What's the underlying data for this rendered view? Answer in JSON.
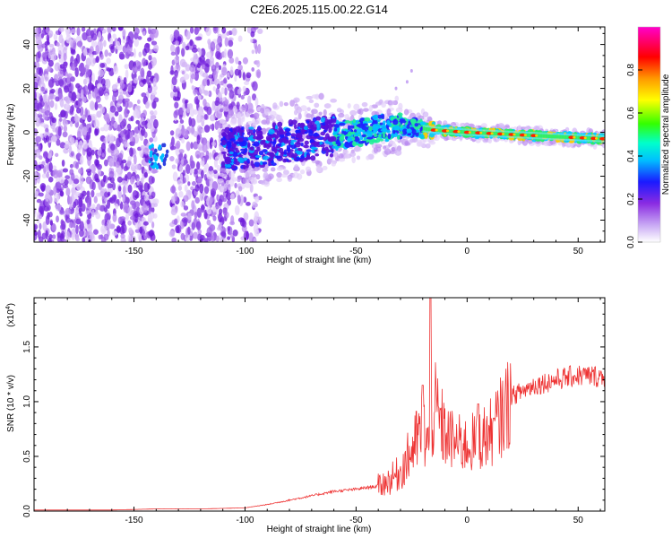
{
  "title": "C2E6.2025.115.00.22.G14",
  "chart_data": [
    {
      "type": "heatmap",
      "xlabel": "Height of straight line (km)",
      "ylabel": "Frequency (Hz)",
      "xlim": [
        -195,
        62
      ],
      "ylim": [
        -50,
        48
      ],
      "xticks": [
        -150,
        -100,
        -50,
        0,
        50
      ],
      "xtick_labels": [
        "-150",
        "-100",
        "-50",
        "0",
        "50"
      ],
      "yticks": [
        -40,
        -20,
        0,
        20,
        40
      ],
      "ytick_labels": [
        "-40",
        "-20",
        "0",
        "20",
        "40"
      ],
      "colorbar": {
        "label": "Normalized spectral amplitude",
        "range": [
          0,
          1
        ],
        "ticks": [
          0.0,
          0.2,
          0.4,
          0.6,
          0.8
        ],
        "tick_labels": [
          "0.0",
          "0.2",
          "0.4",
          "0.6",
          "0.8"
        ],
        "colormap": "rainbow (purple-blue-cyan-green-yellow-red-magenta)"
      },
      "ridge": {
        "x": [
          -110,
          -90,
          -70,
          -50,
          -30,
          -15,
          0,
          20,
          40,
          62
        ],
        "frequency": [
          -8,
          -6,
          -3,
          0,
          3,
          1,
          0,
          -1,
          -2,
          -3
        ]
      },
      "grid": false
    },
    {
      "type": "line",
      "xlabel": "Height of straight line (km)",
      "ylabel": "SNR (10 * v/v)",
      "y_multiplier_label": "(x10",
      "y_multiplier_exp": "4",
      "y_multiplier_close": ")",
      "xlim": [
        -195,
        62
      ],
      "ylim": [
        0,
        1.95
      ],
      "xticks": [
        -150,
        -100,
        -50,
        0,
        50
      ],
      "xtick_labels": [
        "-150",
        "-100",
        "-50",
        "0",
        "50"
      ],
      "yticks": [
        0.0,
        0.5,
        1.0,
        1.5
      ],
      "ytick_labels": [
        "0.0",
        "0.5",
        "1.0",
        "1.5"
      ],
      "color": "#ee3333",
      "series": [
        {
          "x": [
            -195,
            -180,
            -160,
            -140,
            -130,
            -120,
            -100,
            -90,
            -80,
            -70,
            -60,
            -50,
            -40,
            -35,
            -30,
            -25,
            -20,
            -17,
            -15,
            -10,
            -5,
            0,
            5,
            10,
            15,
            20,
            30,
            40,
            50,
            62
          ],
          "values": [
            0.01,
            0.01,
            0.01,
            0.02,
            0.02,
            0.02,
            0.03,
            0.06,
            0.1,
            0.14,
            0.18,
            0.2,
            0.23,
            0.28,
            0.36,
            0.55,
            0.75,
            0.6,
            0.95,
            0.7,
            0.62,
            0.6,
            0.65,
            0.7,
            0.85,
            1.05,
            1.15,
            1.2,
            1.24,
            1.23
          ],
          "peaks": [
            {
              "x": -16.5,
              "y": 1.95
            },
            {
              "x": -20,
              "y": 1.15
            },
            {
              "x": 5,
              "y": 0.98
            },
            {
              "x": 12,
              "y": 0.85
            }
          ]
        }
      ],
      "grid": false
    }
  ]
}
